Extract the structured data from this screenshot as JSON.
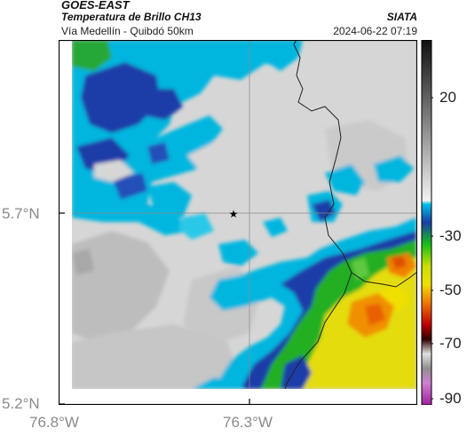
{
  "header": {
    "satellite": "GOES-EAST",
    "product": "Temperatura de Brillo CH13",
    "region": "Vía Medellín - Quibdó 50km",
    "agency": "SIATA",
    "datetime": "2024-06-22 07:19"
  },
  "axes": {
    "x_ticks": [
      "76.8°W",
      "76.3°W"
    ],
    "y_ticks": [
      "5.7°N",
      "5.2°N"
    ]
  },
  "colorbar": {
    "tick_labels": [
      "20",
      "-30",
      "-50",
      "-70",
      "-90"
    ],
    "colors": {
      "warm": "#2a2a2a",
      "cold_cyan": "#00b8e0",
      "blue": "#1530a0",
      "green": "#18b818",
      "yellow": "#f0e000",
      "orange": "#f07800",
      "red": "#c80000",
      "magenta": "#c030c0"
    }
  },
  "marker": {
    "symbol": "★"
  }
}
